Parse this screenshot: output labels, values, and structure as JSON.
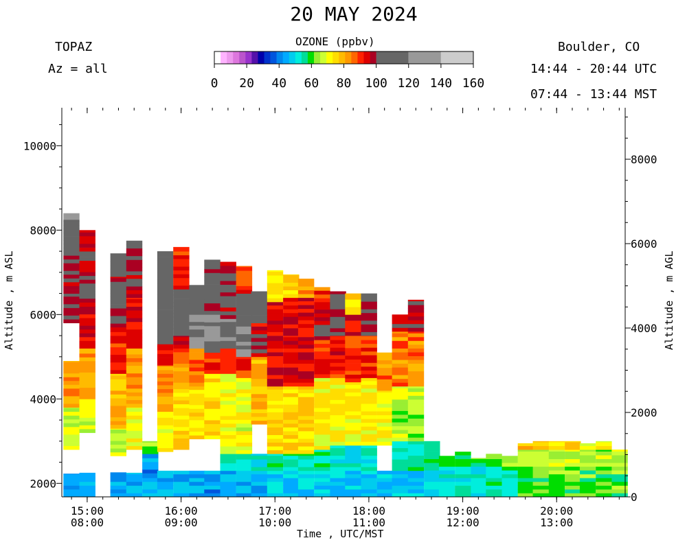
{
  "header": {
    "title": "20 MAY 2024",
    "site": "TOPAZ",
    "azimuth": "Az = all",
    "location": "Boulder, CO",
    "utc_range": "14:44 - 20:44 UTC",
    "mst_range": "07:44 - 13:44 MST"
  },
  "colorbar": {
    "title": "OZONE (ppbv)",
    "tick_labels": [
      "0",
      "20",
      "40",
      "60",
      "80",
      "100",
      "120",
      "140",
      "160"
    ],
    "colors": [
      "#ffffff",
      "#ffb3ff",
      "#ee99ee",
      "#dd77dd",
      "#bb55cc",
      "#9933cc",
      "#5511aa",
      "#0000aa",
      "#0033cc",
      "#0055dd",
      "#0088ee",
      "#00aaff",
      "#00ccee",
      "#00eedd",
      "#00dd99",
      "#00dd00",
      "#99ee33",
      "#ccff33",
      "#ffff00",
      "#ffdd00",
      "#ffbb00",
      "#ff9900",
      "#ff6600",
      "#ff2200",
      "#dd0000",
      "#aa0022",
      "#666666",
      "#999999",
      "#cccccc"
    ]
  },
  "chart_data": {
    "type": "heatmap",
    "title": "20 MAY 2024",
    "xlabel": "Time , UTC/MST",
    "ylabel_left": "Altitude , m ASL",
    "ylabel_right": "Altitude , m AGL",
    "x_ticks_utc": [
      "15:00",
      "16:00",
      "17:00",
      "18:00",
      "19:00",
      "20:00"
    ],
    "x_ticks_mst": [
      "08:00",
      "09:00",
      "10:00",
      "11:00",
      "12:00",
      "13:00"
    ],
    "x_range_utc_hours": [
      14.73,
      20.73
    ],
    "y_left_ticks": [
      "2000",
      "4000",
      "6000",
      "8000",
      "10000"
    ],
    "y_right_ticks": [
      "0",
      "2000",
      "4000",
      "6000",
      "8000"
    ],
    "y_range_m_asl": [
      1680,
      10900
    ],
    "surface_elevation_m": 1680,
    "value_units": "ppbv",
    "value_range": [
      0,
      160
    ],
    "profiles": [
      {
        "t": 14.83,
        "top": 8400,
        "layers": [
          [
            1680,
            2230,
            45
          ],
          [
            2230,
            2800,
            0
          ],
          [
            2800,
            3800,
            68
          ],
          [
            3800,
            4900,
            82
          ],
          [
            4900,
            5800,
            0
          ],
          [
            5800,
            6500,
            100
          ],
          [
            6500,
            7400,
            100
          ],
          [
            7400,
            8250,
            105
          ],
          [
            8250,
            8400,
            125
          ]
        ]
      },
      {
        "t": 15.0,
        "top": 8000,
        "layers": [
          [
            1680,
            2250,
            45
          ],
          [
            2250,
            3200,
            0
          ],
          [
            3200,
            4000,
            68
          ],
          [
            4000,
            5200,
            82
          ],
          [
            5200,
            6200,
            95
          ],
          [
            6200,
            7500,
            100
          ],
          [
            7500,
            8000,
            98
          ]
        ]
      },
      {
        "t": 15.33,
        "top": 7450,
        "layers": [
          [
            1680,
            2260,
            45
          ],
          [
            2260,
            2650,
            0
          ],
          [
            2650,
            3300,
            68
          ],
          [
            3300,
            4600,
            80
          ],
          [
            4600,
            5700,
            92
          ],
          [
            5700,
            6900,
            100
          ],
          [
            6900,
            7450,
            105
          ]
        ]
      },
      {
        "t": 15.5,
        "top": 7750,
        "layers": [
          [
            1680,
            2250,
            45
          ],
          [
            2250,
            2800,
            0
          ],
          [
            2800,
            3800,
            72
          ],
          [
            3800,
            5200,
            82
          ],
          [
            5200,
            6400,
            95
          ],
          [
            6400,
            7750,
            100
          ]
        ]
      },
      {
        "t": 15.67,
        "top": 3000,
        "layers": [
          [
            1680,
            2240,
            45
          ],
          [
            2240,
            2700,
            42
          ],
          [
            2700,
            3000,
            62
          ]
        ]
      },
      {
        "t": 15.83,
        "top": 7500,
        "layers": [
          [
            1680,
            2300,
            45
          ],
          [
            2300,
            2750,
            0
          ],
          [
            2750,
            3700,
            72
          ],
          [
            3700,
            4800,
            82
          ],
          [
            4800,
            5300,
            95
          ],
          [
            5300,
            7500,
            105
          ]
        ]
      },
      {
        "t": 16.0,
        "top": 7600,
        "layers": [
          [
            1680,
            2300,
            45
          ],
          [
            2300,
            2800,
            0
          ],
          [
            2800,
            4300,
            75
          ],
          [
            4300,
            5200,
            85
          ],
          [
            5200,
            5500,
            100
          ],
          [
            5500,
            6100,
            120
          ],
          [
            6100,
            6600,
            105
          ],
          [
            6600,
            7600,
            92
          ]
        ]
      },
      {
        "t": 16.17,
        "top": 6700,
        "layers": [
          [
            1680,
            2300,
            45
          ],
          [
            2300,
            3050,
            0
          ],
          [
            3050,
            4300,
            75
          ],
          [
            4300,
            5200,
            85
          ],
          [
            5200,
            6000,
            120
          ],
          [
            6000,
            6700,
            105
          ]
        ]
      },
      {
        "t": 16.33,
        "top": 7300,
        "layers": [
          [
            1680,
            2300,
            42
          ],
          [
            2300,
            3050,
            0
          ],
          [
            3050,
            4600,
            75
          ],
          [
            4600,
            5100,
            92
          ],
          [
            5100,
            6000,
            120
          ],
          [
            6000,
            7300,
            103
          ]
        ]
      },
      {
        "t": 16.5,
        "top": 7250,
        "layers": [
          [
            1680,
            2300,
            45
          ],
          [
            2300,
            2700,
            52
          ],
          [
            2700,
            4600,
            70
          ],
          [
            4600,
            5200,
            92
          ],
          [
            5200,
            5900,
            120
          ],
          [
            5900,
            7250,
            100
          ]
        ]
      },
      {
        "t": 16.67,
        "top": 7150,
        "layers": [
          [
            1680,
            2300,
            45
          ],
          [
            2300,
            2700,
            52
          ],
          [
            2700,
            4500,
            70
          ],
          [
            4500,
            5000,
            92
          ],
          [
            5000,
            5800,
            120
          ],
          [
            5800,
            6500,
            105
          ],
          [
            6500,
            7150,
            90
          ]
        ]
      },
      {
        "t": 16.83,
        "top": 6550,
        "layers": [
          [
            1680,
            2300,
            45
          ],
          [
            2300,
            2700,
            52
          ],
          [
            2700,
            3400,
            0
          ],
          [
            3400,
            5000,
            80
          ],
          [
            5000,
            5800,
            97
          ],
          [
            5800,
            6550,
            105
          ]
        ]
      },
      {
        "t": 17.0,
        "top": 7050,
        "layers": [
          [
            1680,
            2300,
            48
          ],
          [
            2300,
            2700,
            55
          ],
          [
            2700,
            4300,
            75
          ],
          [
            4300,
            5500,
            95
          ],
          [
            5500,
            6300,
            95
          ],
          [
            6300,
            7050,
            75
          ]
        ]
      },
      {
        "t": 17.17,
        "top": 6950,
        "layers": [
          [
            1680,
            2300,
            48
          ],
          [
            2300,
            2700,
            55
          ],
          [
            2700,
            4300,
            75
          ],
          [
            4300,
            5500,
            95
          ],
          [
            5500,
            6400,
            95
          ],
          [
            6400,
            6950,
            75
          ]
        ]
      },
      {
        "t": 17.33,
        "top": 6850,
        "layers": [
          [
            1680,
            2300,
            48
          ],
          [
            2300,
            2700,
            55
          ],
          [
            2700,
            4300,
            75
          ],
          [
            4300,
            5600,
            95
          ],
          [
            5600,
            6400,
            95
          ],
          [
            6400,
            6850,
            80
          ]
        ]
      },
      {
        "t": 17.5,
        "top": 6650,
        "layers": [
          [
            1680,
            2300,
            48
          ],
          [
            2300,
            2800,
            55
          ],
          [
            2800,
            4500,
            72
          ],
          [
            4500,
            5400,
            92
          ],
          [
            5400,
            6300,
            97
          ],
          [
            6300,
            6650,
            88
          ]
        ]
      },
      {
        "t": 17.67,
        "top": 6550,
        "layers": [
          [
            1680,
            2300,
            48
          ],
          [
            2300,
            2900,
            52
          ],
          [
            2900,
            4500,
            72
          ],
          [
            4500,
            5500,
            92
          ],
          [
            5500,
            6550,
            103
          ]
        ]
      },
      {
        "t": 17.83,
        "top": 6500,
        "layers": [
          [
            1680,
            2300,
            48
          ],
          [
            2300,
            2900,
            52
          ],
          [
            2900,
            4400,
            72
          ],
          [
            4400,
            5500,
            90
          ],
          [
            5500,
            6000,
            95
          ],
          [
            6000,
            6500,
            75
          ]
        ]
      },
      {
        "t": 18.0,
        "top": 6500,
        "layers": [
          [
            1680,
            2300,
            48
          ],
          [
            2300,
            2900,
            52
          ],
          [
            2900,
            4500,
            72
          ],
          [
            4500,
            5500,
            92
          ],
          [
            5500,
            6500,
            98
          ]
        ]
      },
      {
        "t": 18.17,
        "top": 5100,
        "layers": [
          [
            1680,
            2300,
            48
          ],
          [
            2300,
            2900,
            0
          ],
          [
            2900,
            4200,
            72
          ],
          [
            4200,
            5100,
            85
          ]
        ]
      },
      {
        "t": 18.33,
        "top": 6000,
        "layers": [
          [
            1680,
            2300,
            48
          ],
          [
            2300,
            3000,
            55
          ],
          [
            3000,
            4300,
            65
          ],
          [
            4300,
            5600,
            85
          ],
          [
            5600,
            6000,
            98
          ]
        ]
      },
      {
        "t": 18.5,
        "top": 6350,
        "layers": [
          [
            1680,
            2300,
            48
          ],
          [
            2300,
            3000,
            55
          ],
          [
            3000,
            4300,
            65
          ],
          [
            4300,
            5600,
            85
          ],
          [
            5600,
            6350,
            98
          ]
        ]
      },
      {
        "t": 18.67,
        "top": 3000,
        "layers": [
          [
            1680,
            2400,
            52
          ],
          [
            2400,
            3000,
            58
          ]
        ]
      },
      {
        "t": 18.83,
        "top": 2650,
        "layers": [
          [
            1680,
            2400,
            52
          ],
          [
            2400,
            2650,
            60
          ]
        ]
      },
      {
        "t": 19.0,
        "top": 2750,
        "layers": [
          [
            1680,
            2400,
            52
          ],
          [
            2400,
            2750,
            60
          ]
        ]
      },
      {
        "t": 19.17,
        "top": 2600,
        "layers": [
          [
            1680,
            2400,
            52
          ],
          [
            2400,
            2600,
            60
          ]
        ]
      },
      {
        "t": 19.33,
        "top": 2700,
        "layers": [
          [
            1680,
            2400,
            54
          ],
          [
            2400,
            2700,
            62
          ]
        ]
      },
      {
        "t": 19.5,
        "top": 2650,
        "layers": [
          [
            1680,
            2400,
            54
          ],
          [
            2400,
            2650,
            62
          ]
        ]
      },
      {
        "t": 19.67,
        "top": 2950,
        "layers": [
          [
            1680,
            2400,
            60
          ],
          [
            2400,
            2800,
            68
          ],
          [
            2800,
            2950,
            78
          ]
        ]
      },
      {
        "t": 19.83,
        "top": 3000,
        "layers": [
          [
            1680,
            2400,
            60
          ],
          [
            2400,
            2800,
            68
          ],
          [
            2800,
            3000,
            78
          ]
        ]
      },
      {
        "t": 20.0,
        "top": 3000,
        "layers": [
          [
            1680,
            2400,
            62
          ],
          [
            2400,
            2800,
            68
          ],
          [
            2800,
            3000,
            75
          ]
        ]
      },
      {
        "t": 20.17,
        "top": 3000,
        "layers": [
          [
            1680,
            2400,
            62
          ],
          [
            2400,
            2800,
            68
          ],
          [
            2800,
            3000,
            76
          ]
        ]
      },
      {
        "t": 20.33,
        "top": 2950,
        "layers": [
          [
            1680,
            2400,
            62
          ],
          [
            2400,
            2800,
            66
          ],
          [
            2800,
            2950,
            70
          ]
        ]
      },
      {
        "t": 20.5,
        "top": 3000,
        "layers": [
          [
            1680,
            2400,
            62
          ],
          [
            2400,
            2800,
            66
          ],
          [
            2800,
            3000,
            72
          ]
        ]
      },
      {
        "t": 20.67,
        "top": 2800,
        "layers": [
          [
            1680,
            2400,
            62
          ],
          [
            2400,
            2800,
            65
          ]
        ]
      }
    ]
  }
}
